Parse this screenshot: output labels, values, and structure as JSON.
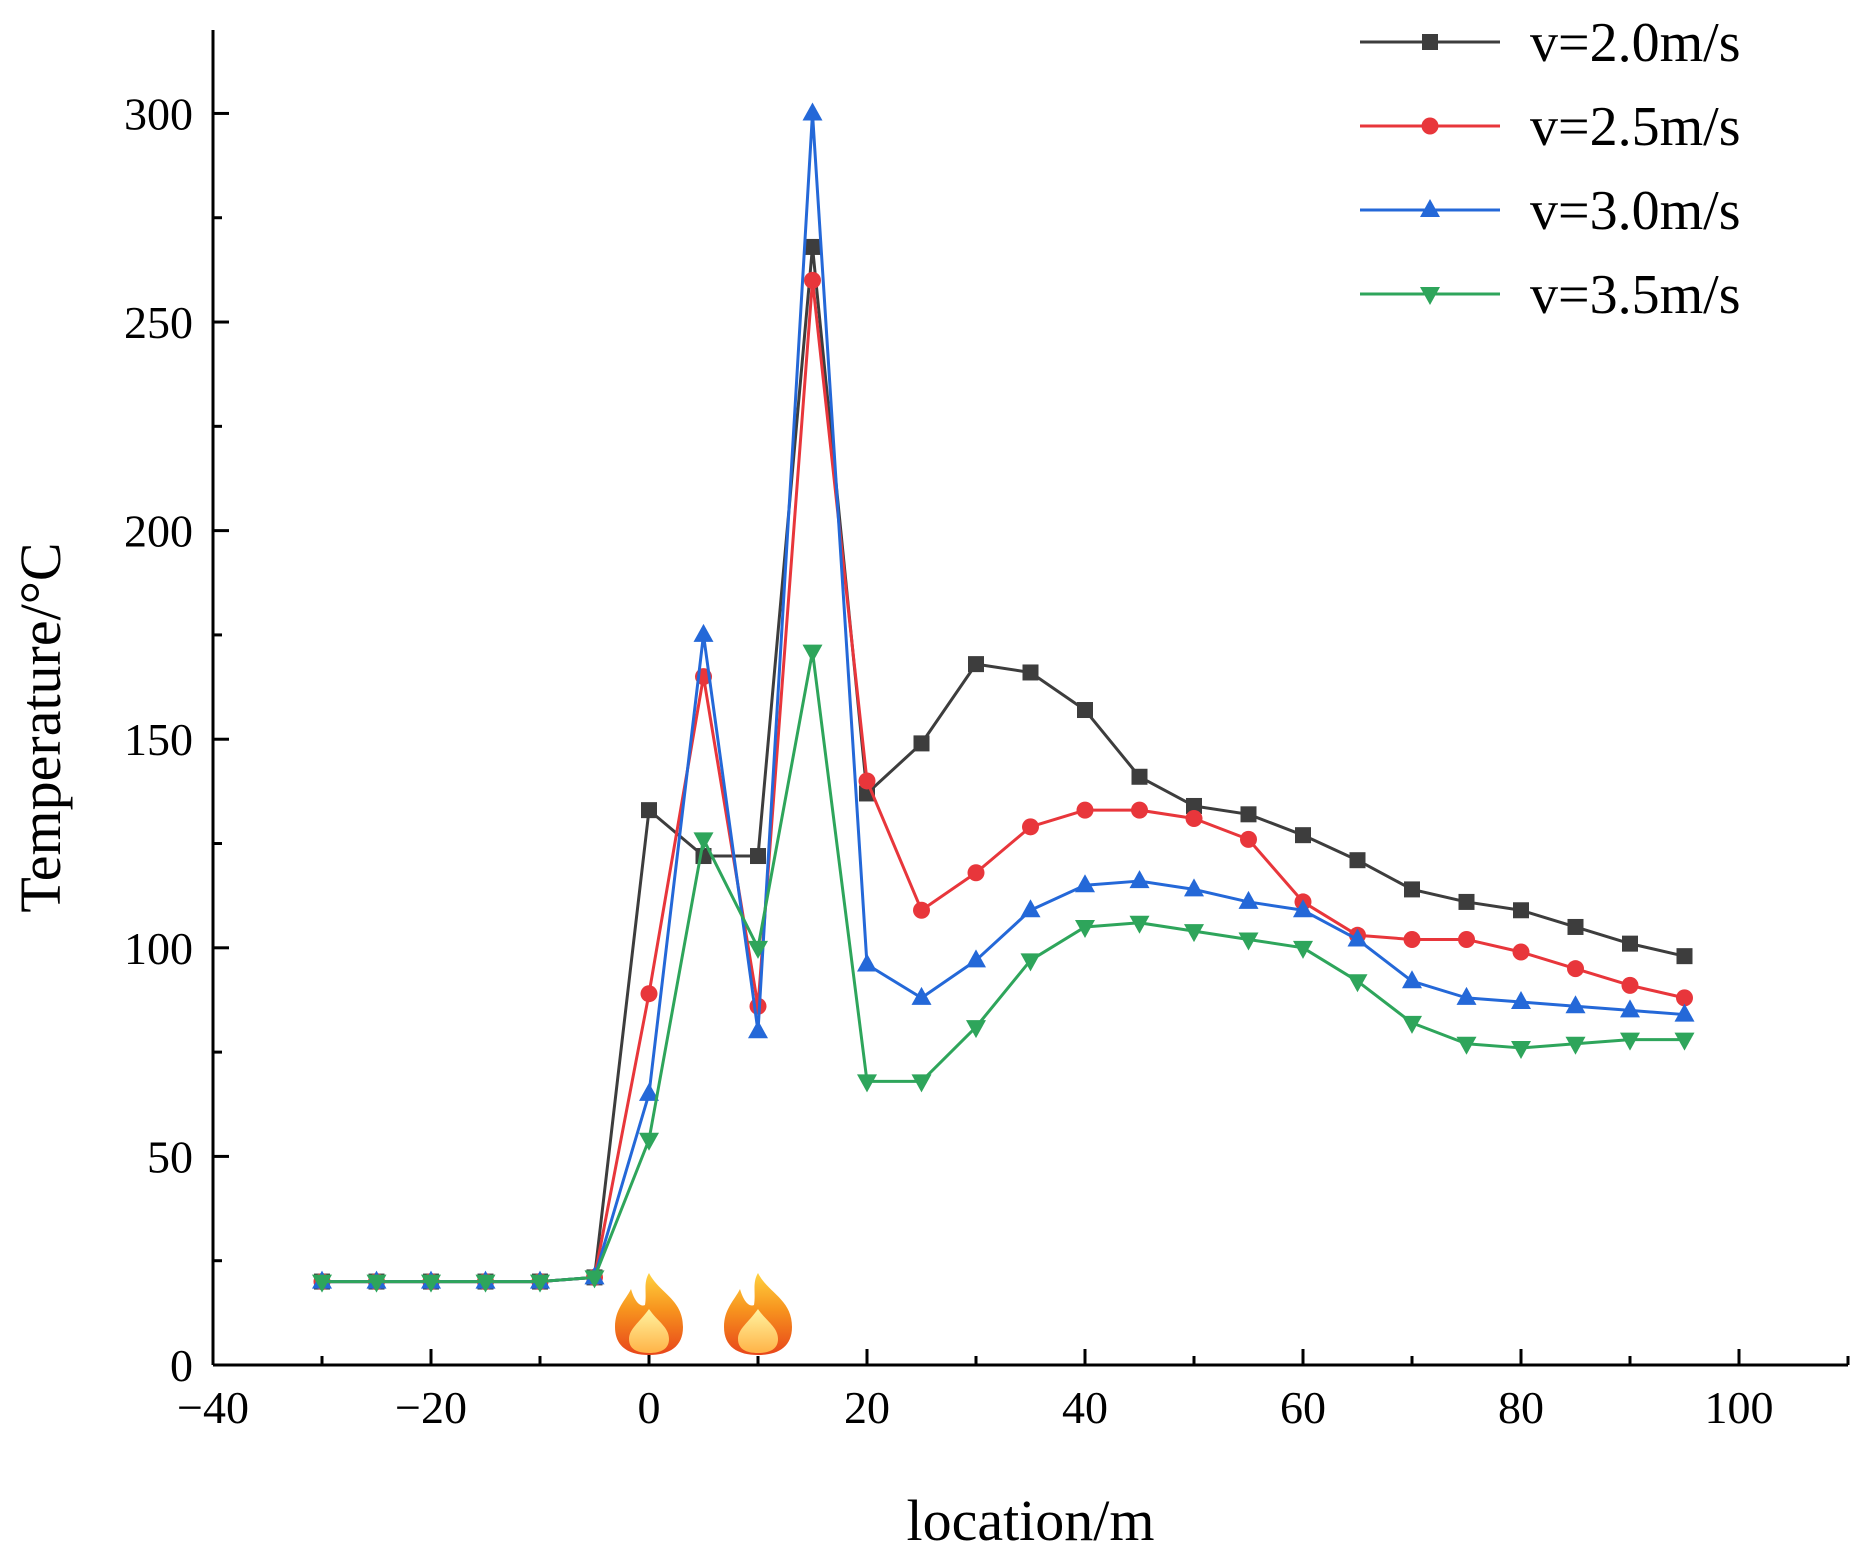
{
  "chart_data": {
    "type": "line",
    "xlabel": "location/m",
    "ylabel": "Temperature/°C",
    "xlim": [
      -40,
      110
    ],
    "ylim": [
      0,
      320
    ],
    "x_ticks": [
      -40,
      -20,
      0,
      20,
      40,
      60,
      80,
      100
    ],
    "y_ticks": [
      0,
      50,
      100,
      150,
      200,
      250,
      300
    ],
    "legend_position": "top-right",
    "x": [
      -30,
      -25,
      -20,
      -15,
      -10,
      -5,
      0,
      5,
      10,
      15,
      20,
      25,
      30,
      35,
      40,
      45,
      50,
      55,
      60,
      65,
      70,
      75,
      80,
      85,
      90,
      95
    ],
    "series": [
      {
        "name": "v=2.0m/s",
        "color": "#3d3d3d",
        "marker": "square",
        "values": [
          20,
          20,
          20,
          20,
          20,
          21,
          133,
          122,
          122,
          268,
          137,
          149,
          168,
          166,
          157,
          141,
          134,
          132,
          127,
          121,
          114,
          111,
          109,
          105,
          101,
          98
        ]
      },
      {
        "name": "v=2.5m/s",
        "color": "#e8363b",
        "marker": "circle",
        "values": [
          20,
          20,
          20,
          20,
          20,
          21,
          89,
          165,
          86,
          260,
          140,
          109,
          118,
          129,
          133,
          133,
          131,
          126,
          111,
          103,
          102,
          102,
          99,
          95,
          91,
          88
        ]
      },
      {
        "name": "v=3.0m/s",
        "color": "#2468d8",
        "marker": "triangle-up",
        "values": [
          20,
          20,
          20,
          20,
          20,
          21,
          65,
          175,
          80,
          300,
          96,
          88,
          97,
          109,
          115,
          116,
          114,
          111,
          109,
          102,
          92,
          88,
          87,
          86,
          85,
          84
        ]
      },
      {
        "name": "v=3.5m/s",
        "color": "#2ea55b",
        "marker": "triangle-down",
        "values": [
          20,
          20,
          20,
          20,
          20,
          21,
          54,
          126,
          100,
          171,
          68,
          68,
          81,
          97,
          105,
          106,
          104,
          102,
          100,
          92,
          82,
          77,
          76,
          77,
          78,
          78
        ]
      }
    ],
    "annotations": [
      {
        "icon": "fire-icon",
        "x": 0
      },
      {
        "icon": "fire-icon",
        "x": 10
      }
    ]
  }
}
